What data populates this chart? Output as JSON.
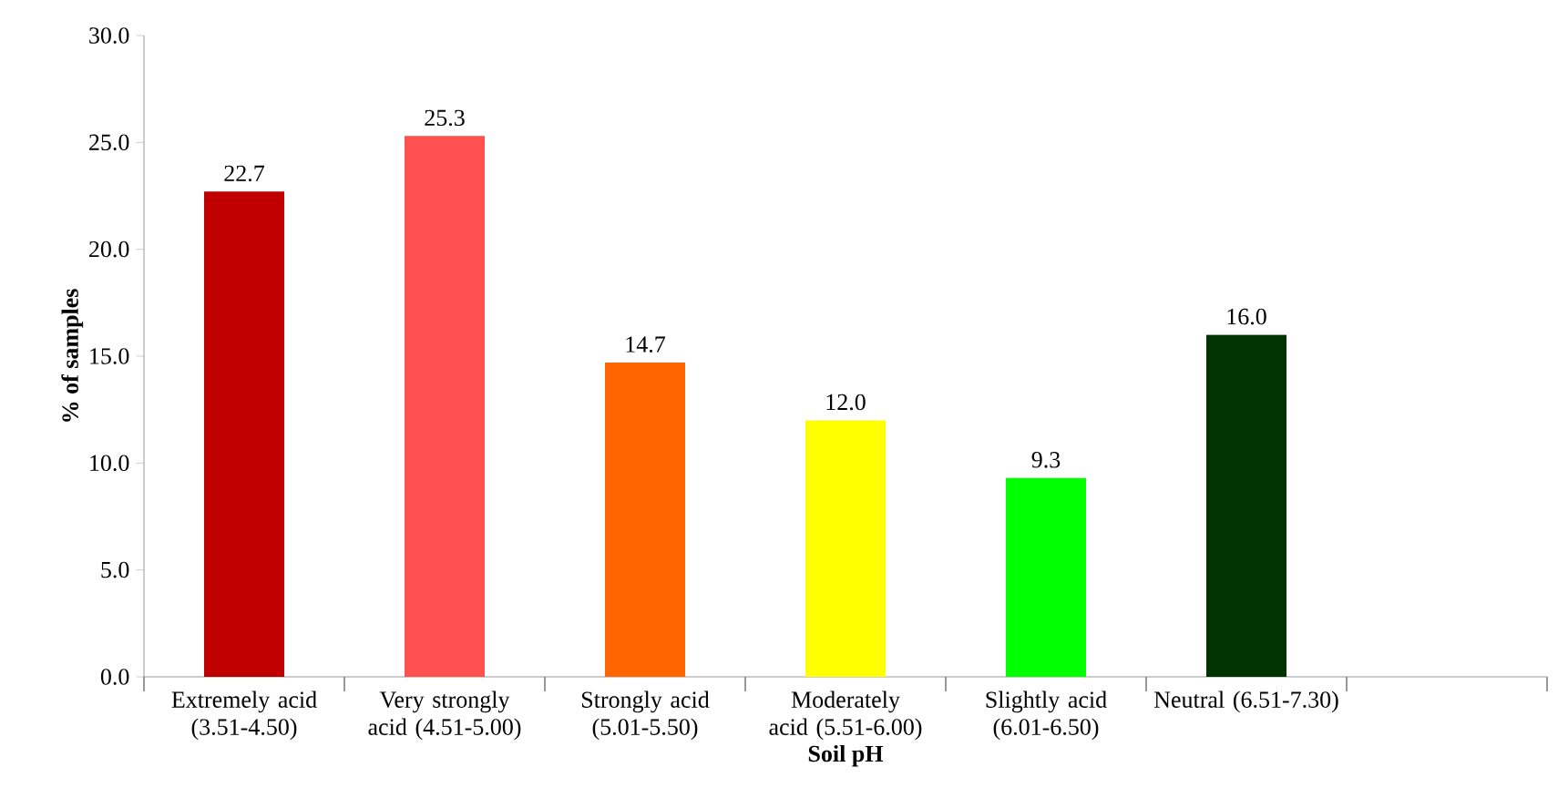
{
  "chart_data": {
    "type": "bar",
    "xlabel": "Soil pH",
    "ylabel": "% of samples",
    "categories": [
      "Extremely acid (3.51-4.50)",
      "Very strongly acid (4.51-5.00)",
      "Strongly acid (5.01-5.50)",
      "Moderately acid (5.51-6.00)",
      "Slightly acid (6.01-6.50)",
      "Neutral (6.51-7.30)",
      null
    ],
    "values": [
      22.7,
      25.3,
      14.7,
      12.0,
      9.3,
      16.0,
      null
    ],
    "colors": [
      "#c00000",
      "#ff5050",
      "#ff6600",
      "#ffff00",
      "#00ff00",
      "#003300",
      "#000000"
    ],
    "ylim": [
      0,
      30
    ],
    "yticks": [
      {
        "value": 0,
        "label": "0.0"
      },
      {
        "value": 5,
        "label": "5.0"
      },
      {
        "value": 10,
        "label": "10.0"
      },
      {
        "value": 15,
        "label": "15.0"
      },
      {
        "value": 20,
        "label": "20.0"
      },
      {
        "value": 25,
        "label": "25.0"
      },
      {
        "value": 30,
        "label": "30.0"
      }
    ],
    "value_labels": [
      "22.7",
      "25.3",
      "14.7",
      "12.0",
      "9.3",
      "16.0",
      null
    ]
  }
}
